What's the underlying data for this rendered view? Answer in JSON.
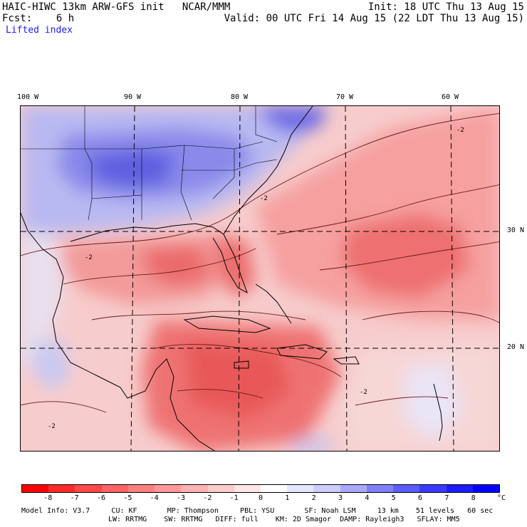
{
  "header": {
    "model_title": "HAIC-HIWC 13km ARW-GFS init   NCAR/MMM",
    "init": "Init: 18 UTC Thu 13 Aug 15",
    "fcst": "Fcst:    6 h",
    "valid": "Valid: 00 UTC Fri 14 Aug 15 (22 LDT Thu 13 Aug 15)",
    "field": "Lifted index"
  },
  "map": {
    "lon_labels": [
      "100 W",
      "90 W",
      "80 W",
      "70 W",
      "60 W"
    ],
    "lat_labels": [
      "30 N",
      "20 N"
    ],
    "contour_label": "-2"
  },
  "colorbar": {
    "ticks": [
      "-8",
      "-7",
      "-6",
      "-5",
      "-4",
      "-3",
      "-2",
      "-1",
      "0",
      "1",
      "2",
      "3",
      "4",
      "5",
      "6",
      "7",
      "8"
    ],
    "unit": "°C",
    "colors": [
      "#ff0000",
      "#ff2a2a",
      "#ff4848",
      "#ff6464",
      "#ff7f7f",
      "#ff9999",
      "#ffb3b3",
      "#ffcccc",
      "#ffe6e6",
      "#ffffff",
      "#e6e6ff",
      "#ccccff",
      "#a8a8ff",
      "#8080ff",
      "#5c5cff",
      "#3a3aff",
      "#1c1cff",
      "#0000ff"
    ]
  },
  "footer": {
    "line1": "Model Info: V3.7     CU: KF       MP: Thompson     PBL: YSU       SF: Noah LSM     13 km    51 levels   60 sec",
    "line2": "LW: RRTMG    SW: RRTMG   DIFF: full    KM: 2D Smagor  DAMP: Rayleigh3   SFLAY: MM5"
  }
}
